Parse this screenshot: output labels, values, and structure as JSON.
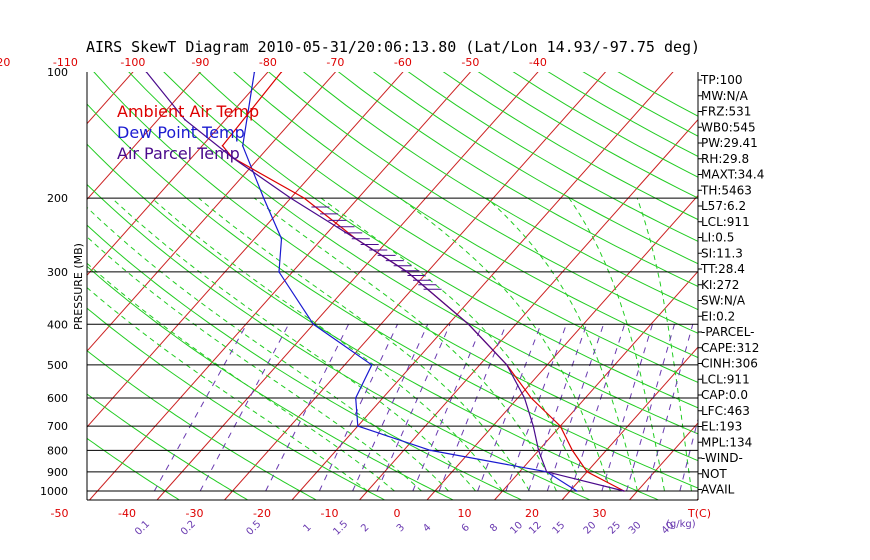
{
  "chart_data": {
    "type": "skew-t",
    "title": "AIRS SkewT Diagram 2010-05-31/20:06:13.80 (Lat/Lon 14.93/-97.75 deg)",
    "yaxis_label": "PRESSURE (MB)",
    "pressure_ticks": [
      "100",
      "200",
      "300",
      "400",
      "500",
      "600",
      "700",
      "800",
      "900",
      "1000"
    ],
    "top_temp_ticks": [
      "-120",
      "-110",
      "-100",
      "-90",
      "-80",
      "-70",
      "-60",
      "-50",
      "-40"
    ],
    "bottom_temp_ticks": [
      "-50",
      "-40",
      "-30",
      "-20",
      "-10",
      "0",
      "10",
      "20",
      "30"
    ],
    "bottom_temp_unit": "T(C)",
    "mixing_ratio_labels": [
      "0.1",
      "0.2",
      "0.5",
      "1",
      "1.5",
      "2",
      "3",
      "4",
      "6",
      "8",
      "10",
      "12",
      "15",
      "20",
      "25",
      "30",
      "40"
    ],
    "mixing_ratio_unit": "(g/kg)",
    "legend": [
      {
        "label": "Ambient Air Temp",
        "color": "#dd0000"
      },
      {
        "label": "Dew Point Temp",
        "color": "#1a1ad0"
      },
      {
        "label": "Air Parcel Temp",
        "color": "#4a0a8c"
      }
    ],
    "isotherm_color": "#cc2222",
    "dry_adiabat_color": "#22cc22",
    "moist_adiabat_color": "#22cc22",
    "mixing_ratio_color": "#6a3ab0",
    "isobar_color": "#000000",
    "ambient_temp": [
      {
        "p": 100,
        "t": -78
      },
      {
        "p": 150,
        "t": -77
      },
      {
        "p": 160,
        "t": -74
      },
      {
        "p": 200,
        "t": -58
      },
      {
        "p": 250,
        "t": -45
      },
      {
        "p": 300,
        "t": -33
      },
      {
        "p": 400,
        "t": -17
      },
      {
        "p": 500,
        "t": -6
      },
      {
        "p": 600,
        "t": 2
      },
      {
        "p": 700,
        "t": 10
      },
      {
        "p": 800,
        "t": 15
      },
      {
        "p": 900,
        "t": 20
      },
      {
        "p": 1000,
        "t": 28
      }
    ],
    "dew_point": [
      {
        "p": 100,
        "t": -82
      },
      {
        "p": 150,
        "t": -74
      },
      {
        "p": 200,
        "t": -64
      },
      {
        "p": 250,
        "t": -56
      },
      {
        "p": 300,
        "t": -52
      },
      {
        "p": 400,
        "t": -40
      },
      {
        "p": 500,
        "t": -26
      },
      {
        "p": 600,
        "t": -24
      },
      {
        "p": 700,
        "t": -20
      },
      {
        "p": 800,
        "t": -6
      },
      {
        "p": 900,
        "t": 14
      },
      {
        "p": 1000,
        "t": 21
      }
    ],
    "parcel_temp": [
      {
        "p": 100,
        "t": -98
      },
      {
        "p": 130,
        "t": -86
      },
      {
        "p": 160,
        "t": -74
      },
      {
        "p": 200,
        "t": -60
      },
      {
        "p": 250,
        "t": -45
      },
      {
        "p": 300,
        "t": -33
      },
      {
        "p": 400,
        "t": -17
      },
      {
        "p": 500,
        "t": -6
      },
      {
        "p": 600,
        "t": 1
      },
      {
        "p": 700,
        "t": 6
      },
      {
        "p": 800,
        "t": 10
      },
      {
        "p": 900,
        "t": 14
      },
      {
        "p": 1000,
        "t": 28
      }
    ]
  },
  "indices": [
    "TP:100",
    "MW:N/A",
    "FRZ:531",
    "WB0:545",
    "PW:29.41",
    "RH:29.8",
    "MAXT:34.4",
    "TH:5463",
    "L57:6.2",
    "LCL:911",
    "LI:0.5",
    "SI:11.3",
    "TT:28.4",
    "KI:272",
    "SW:N/A",
    "EI:0.2",
    "-PARCEL-",
    "CAPE:312",
    "CINH:306",
    "LCL:911",
    "CAP:0.0",
    "LFC:463",
    "EL:193",
    "MPL:134",
    "-WIND-",
    "NOT",
    "AVAIL"
  ]
}
